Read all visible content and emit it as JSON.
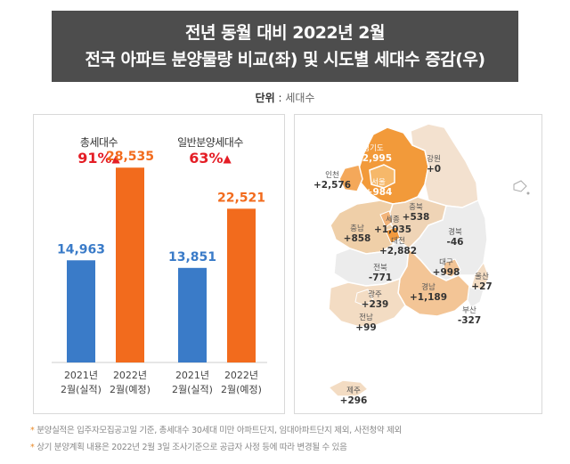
{
  "header": {
    "title_line1": "전년 동월 대비 2022년 2월",
    "title_line2": "전국 아파트 분양물량 비교(좌) 및 시도별 세대수 증감(우)"
  },
  "unit": {
    "label": "단위",
    "sep": " : ",
    "value": "세대수"
  },
  "groups": [
    {
      "label": "총세대수",
      "pct": "91%",
      "arrow": "▲"
    },
    {
      "label": "일반분양세대수",
      "pct": "63%",
      "arrow": "▲"
    }
  ],
  "chart_data": [
    {
      "type": "bar",
      "categories": [
        "2021년 2월(실적)",
        "2022년 2월(예정)",
        "2021년 2월(실적)",
        "2022년 2월(예정)"
      ],
      "groups": [
        "총세대수",
        "일반분양세대수"
      ],
      "values": [
        14963,
        28535,
        13851,
        22521
      ],
      "value_labels": [
        "14,963",
        "28,535",
        "13,851",
        "22,521"
      ],
      "category_lines": [
        [
          "2021년",
          "2월(실적)"
        ],
        [
          "2022년",
          "2월(예정)"
        ],
        [
          "2021년",
          "2월(실적)"
        ],
        [
          "2022년",
          "2월(예정)"
        ]
      ],
      "bar_colors": [
        "#3a7bc8",
        "#f26b1d",
        "#3a7bc8",
        "#f26b1d"
      ],
      "ylim": [
        0,
        30000
      ]
    },
    {
      "type": "map",
      "regions": [
        {
          "name": "경기도",
          "value": "+2,995"
        },
        {
          "name": "강원",
          "value": "+0"
        },
        {
          "name": "인천",
          "value": "+2,576"
        },
        {
          "name": "서울",
          "value": "+984"
        },
        {
          "name": "충북",
          "value": "+538"
        },
        {
          "name": "세종",
          "value": "+1,035"
        },
        {
          "name": "충남",
          "value": "+858"
        },
        {
          "name": "대전",
          "value": "+2,882"
        },
        {
          "name": "경북",
          "value": "-46"
        },
        {
          "name": "전북",
          "value": "-771"
        },
        {
          "name": "대구",
          "value": "+998"
        },
        {
          "name": "울산",
          "value": "+27"
        },
        {
          "name": "광주",
          "value": "+239"
        },
        {
          "name": "경남",
          "value": "+1,189"
        },
        {
          "name": "부산",
          "value": "-327"
        },
        {
          "name": "전남",
          "value": "+99"
        },
        {
          "name": "제주",
          "value": "+296"
        }
      ]
    }
  ],
  "footnotes": [
    "분양실적은 입주자모집공고일 기준, 총세대수 30세대 미만 아파트단지, 임대아파트단지 제외, 사전청약 제외",
    "상기 분양계획 내용은 2022년 2월 3일 조사기준으로 공급자 사정 등에 따라 변경될 수 있음"
  ],
  "footnote_marker": "*",
  "colors": {
    "blue": "#3a7bc8",
    "orange": "#f26b1d",
    "red": "#e41e26",
    "title_bg": "#4d4d4d"
  }
}
